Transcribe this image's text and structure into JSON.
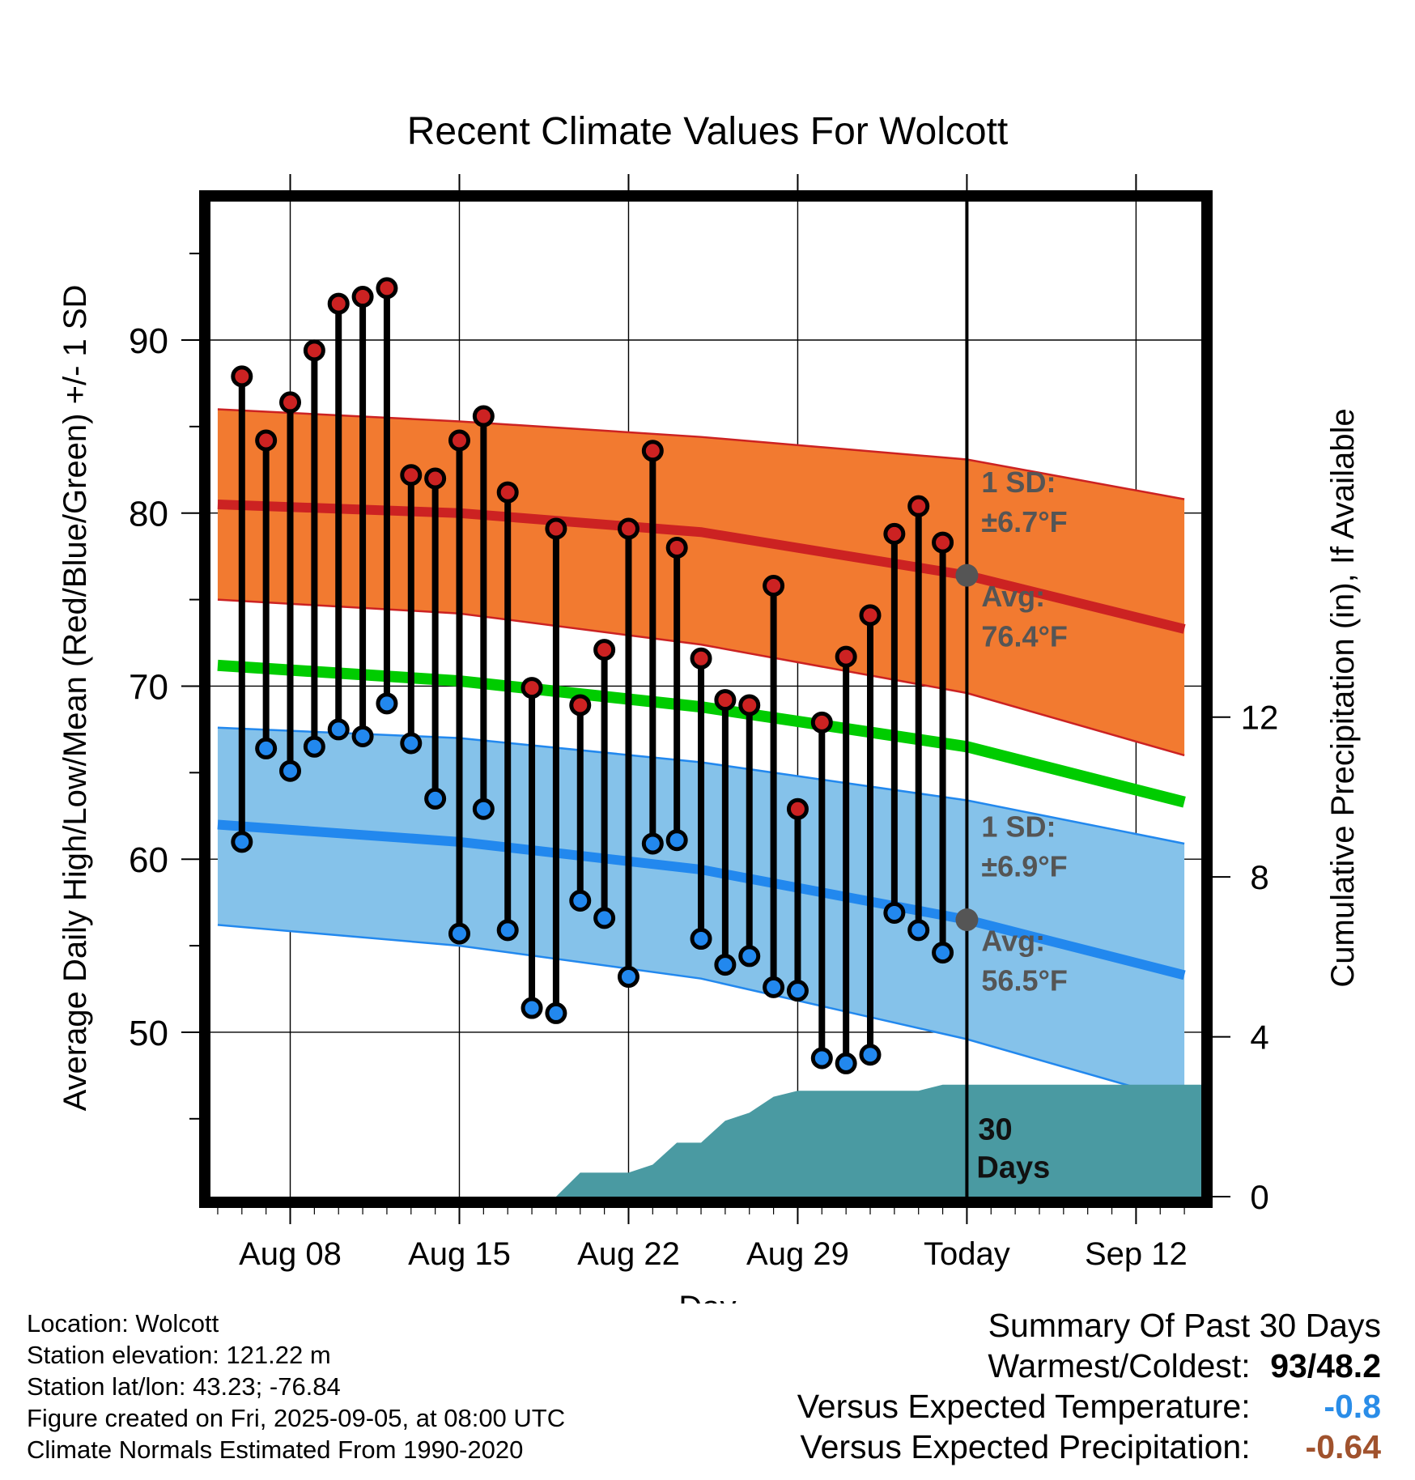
{
  "chart_data": {
    "type": "line",
    "title": "Recent Climate Values For Wolcott",
    "xlabel": "Day",
    "ylabel_left": "Average Daily High/Low/Mean (Red/Blue/Green) +/- 1 SD",
    "ylabel_right": "Cumulative Precipitation (in), If Available",
    "x_tick_labels": [
      "Aug 08",
      "Aug 15",
      "Aug 22",
      "Aug 29",
      "Today",
      "Sep 12"
    ],
    "x_tick_dates": [
      "2025-08-08",
      "2025-08-15",
      "2025-08-22",
      "2025-08-29",
      "2025-09-05",
      "2025-09-12"
    ],
    "xlim": [
      "2025-08-04.7",
      "2025-09-14.7"
    ],
    "left_y_ticks": [
      50,
      60,
      70,
      80,
      90
    ],
    "ylim_left": [
      40.5,
      98
    ],
    "right_y_ticks": [
      0,
      4,
      8,
      12
    ],
    "ylim_right": [
      0,
      24.9
    ],
    "grid": true,
    "today": "2025-09-05",
    "dates": [
      "2025-08-06",
      "2025-08-07",
      "2025-08-08",
      "2025-08-09",
      "2025-08-10",
      "2025-08-11",
      "2025-08-12",
      "2025-08-13",
      "2025-08-14",
      "2025-08-15",
      "2025-08-16",
      "2025-08-17",
      "2025-08-18",
      "2025-08-19",
      "2025-08-20",
      "2025-08-21",
      "2025-08-22",
      "2025-08-23",
      "2025-08-24",
      "2025-08-25",
      "2025-08-26",
      "2025-08-27",
      "2025-08-28",
      "2025-08-29",
      "2025-08-30",
      "2025-08-31",
      "2025-09-01",
      "2025-09-02",
      "2025-09-03",
      "2025-09-04"
    ],
    "series": [
      {
        "name": "High",
        "color": "#cc2222",
        "values": [
          87.9,
          84.2,
          86.4,
          89.4,
          92.1,
          92.5,
          93.0,
          82.2,
          82.0,
          84.2,
          85.6,
          81.2,
          69.9,
          79.1,
          68.9,
          72.1,
          79.1,
          83.6,
          78.0,
          71.6,
          69.2,
          68.9,
          75.8,
          62.9,
          67.9,
          71.7,
          74.1,
          78.8,
          80.4,
          78.3
        ]
      },
      {
        "name": "Low",
        "color": "#2288ee",
        "values": [
          61.0,
          66.4,
          65.1,
          66.5,
          67.5,
          67.1,
          69.0,
          66.7,
          63.5,
          55.7,
          62.9,
          55.9,
          51.4,
          51.1,
          57.6,
          56.6,
          53.2,
          60.9,
          61.1,
          55.4,
          53.9,
          54.4,
          52.6,
          52.4,
          48.5,
          48.2,
          48.7,
          56.9,
          55.9,
          54.6
        ]
      }
    ],
    "normals_dates": [
      "2025-08-05",
      "2025-08-15",
      "2025-08-25",
      "2025-09-05",
      "2025-09-14"
    ],
    "normal_high": {
      "color": "#cc2222",
      "values": [
        80.5,
        80.0,
        78.9,
        76.4,
        73.3
      ]
    },
    "normal_high_band": {
      "color": "#f27a30",
      "upper": [
        86.0,
        85.3,
        84.4,
        83.1,
        80.8
      ],
      "lower": [
        75.0,
        74.2,
        72.4,
        69.6,
        66.0
      ]
    },
    "normal_mean": {
      "color": "#00cc00",
      "values": [
        71.2,
        70.3,
        68.8,
        66.5,
        63.3
      ]
    },
    "normal_low": {
      "color": "#2288ee",
      "values": [
        62.0,
        61.0,
        59.4,
        56.5,
        53.3
      ]
    },
    "normal_low_band": {
      "color": "#85c2ea",
      "upper": [
        67.6,
        67.0,
        65.6,
        63.4,
        60.9
      ],
      "lower": [
        56.2,
        55.0,
        53.1,
        49.6,
        46.0
      ]
    },
    "precip": {
      "color": "#4a9aa2",
      "dates": [
        "2025-08-19",
        "2025-08-20",
        "2025-08-21",
        "2025-08-22",
        "2025-08-23",
        "2025-08-24",
        "2025-08-25",
        "2025-08-26",
        "2025-08-27",
        "2025-08-28",
        "2025-08-29",
        "2025-08-30",
        "2025-09-03",
        "2025-09-04",
        "2025-09-14.7"
      ],
      "values": [
        0,
        0.6,
        0.6,
        0.6,
        0.8,
        1.35,
        1.35,
        1.9,
        2.1,
        2.5,
        2.65,
        2.65,
        2.65,
        2.8,
        2.8
      ]
    },
    "annotations": {
      "high_sd_label": "1 SD:",
      "high_sd_value": "±6.7°F",
      "high_avg_label": "Avg:",
      "high_avg_value": "76.4°F",
      "low_sd_label": "1 SD:",
      "low_sd_value": "±6.9°F",
      "low_avg_label": "Avg:",
      "low_avg_value": "56.5°F",
      "days_number": "30",
      "days_word": "Days"
    }
  },
  "footer": {
    "location": "Location: Wolcott",
    "elevation": "Station elevation: 121.22 m",
    "latlon": "Station lat/lon: 43.23; -76.84",
    "created": "Figure created on Fri, 2025-09-05, at 08:00 UTC",
    "normals": "Climate Normals Estimated From 1990-2020"
  },
  "summary": {
    "heading": "Summary Of Past 30 Days",
    "warmest_label": "Warmest/Coldest:",
    "warmest_value": "93/48.2",
    "temp_label": "Versus Expected Temperature:",
    "temp_value": "-0.8",
    "temp_color": "#2a8de8",
    "precip_label": "Versus Expected Precipitation:",
    "precip_value": "-0.64",
    "precip_color": "#a0522d"
  }
}
